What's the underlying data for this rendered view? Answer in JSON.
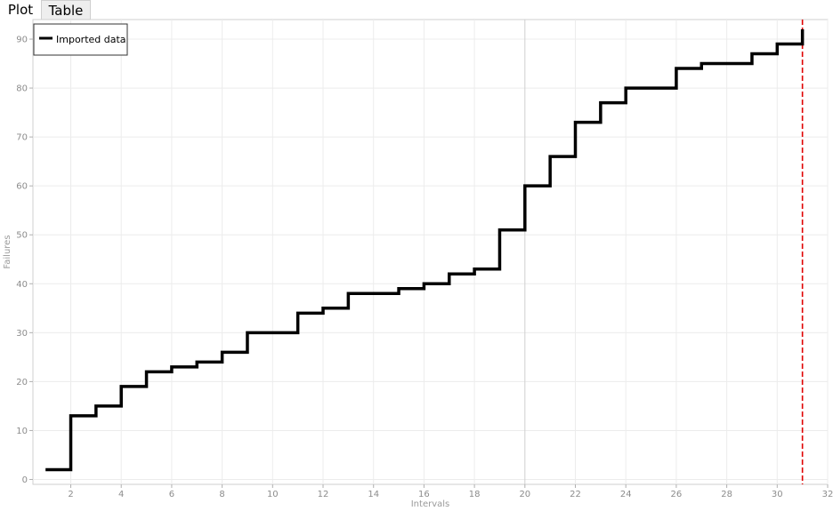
{
  "tabs": [
    {
      "label": "Plot",
      "active": true
    },
    {
      "label": "Table",
      "active": false
    }
  ],
  "chart_data": {
    "type": "line",
    "step": true,
    "title": "",
    "xlabel": "Intervals",
    "ylabel": "Failures",
    "xlim": [
      0.5,
      32
    ],
    "ylim": [
      -1,
      94
    ],
    "xticks": [
      2,
      4,
      6,
      8,
      10,
      12,
      14,
      16,
      18,
      20,
      22,
      24,
      26,
      28,
      30,
      32
    ],
    "yticks": [
      0,
      10,
      20,
      30,
      40,
      50,
      60,
      70,
      80,
      90
    ],
    "grid": true,
    "legend_position": "top-left",
    "series": [
      {
        "name": "Imported data",
        "color": "#000000",
        "x": [
          1,
          2,
          3,
          4,
          5,
          6,
          7,
          8,
          9,
          10,
          11,
          12,
          13,
          14,
          15,
          16,
          17,
          18,
          19,
          20,
          21,
          22,
          23,
          24,
          25,
          26,
          27,
          28,
          29,
          30,
          31
        ],
        "y": [
          2,
          13,
          15,
          19,
          22,
          23,
          24,
          26,
          30,
          30,
          34,
          35,
          38,
          38,
          39,
          40,
          42,
          43,
          51,
          60,
          66,
          73,
          77,
          80,
          80,
          84,
          85,
          85,
          87,
          89,
          92
        ]
      }
    ],
    "reference_line": {
      "x": 31,
      "color": "#e00000",
      "style": "dashed"
    },
    "highlight_x": 20
  }
}
